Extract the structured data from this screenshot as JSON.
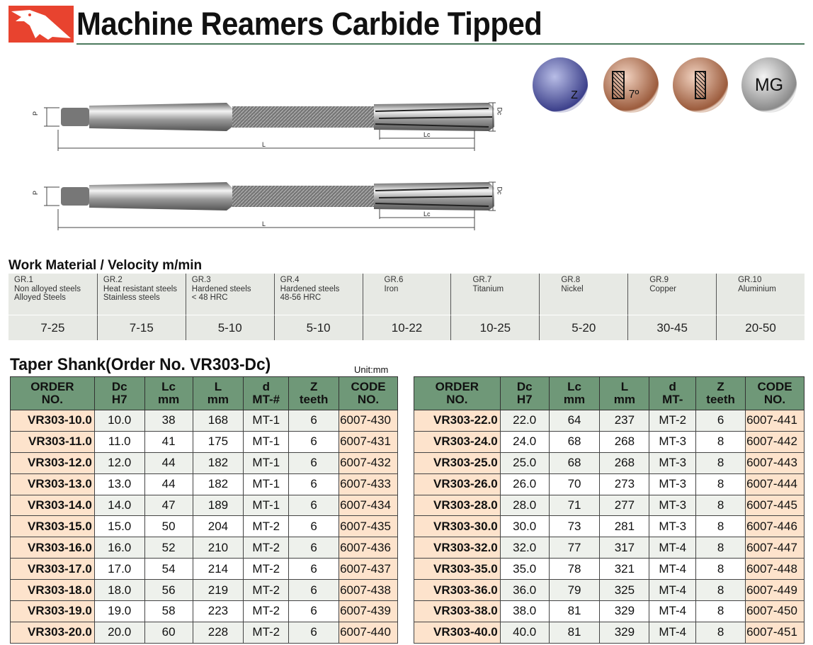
{
  "header": {
    "title": "Machine Reamers Carbide Tipped",
    "brand_color": "#e8432f"
  },
  "badges": [
    {
      "icon": "flute-count-icon",
      "label": "Z"
    },
    {
      "icon": "chamfer-angle-icon",
      "label": "7º"
    },
    {
      "icon": "through-coolant-icon"
    },
    {
      "icon": "mg-grade-icon",
      "label": "MG"
    }
  ],
  "drawing": {
    "labels": {
      "d": "P",
      "dc": "Dc",
      "lc": "Lc",
      "l": "L"
    }
  },
  "work_material": {
    "title": "Work Material / Velocity m/min",
    "groups": [
      {
        "name": "GR.1\nNon alloyed steels\nAlloyed Steels",
        "velocity": "7-25"
      },
      {
        "name": "GR.2\nHeat resistant steels\nStainless steels",
        "velocity": "7-15"
      },
      {
        "name": "GR.3\nHardened steels\n< 48 HRC",
        "velocity": "5-10"
      },
      {
        "name": "GR.4\nHardened steels\n48-56 HRC",
        "velocity": "5-10"
      },
      {
        "name": "GR.6\nIron",
        "velocity": "10-22"
      },
      {
        "name": "GR.7\nTitanium",
        "velocity": "10-25"
      },
      {
        "name": "GR.8\nNickel",
        "velocity": "5-20"
      },
      {
        "name": "GR.9\nCopper",
        "velocity": "30-45"
      },
      {
        "name": "GR.10\nAluminium",
        "velocity": "20-50"
      }
    ]
  },
  "taper_shank": {
    "title": "Taper Shank(Order No. VR303-Dc)",
    "unit": "Unit:mm",
    "colors": {
      "header": "#6f9878",
      "order": "#fde3cc"
    },
    "left": {
      "headers": [
        "ORDER\nNO.",
        "Dc\nH7",
        "Lc\nmm",
        "L\nmm",
        "d\nMT-#",
        "Z\nteeth",
        "CODE\nNO."
      ],
      "rows": [
        [
          "VR303-10.0",
          "10.0",
          "38",
          "168",
          "MT-1",
          "6",
          "6007-430"
        ],
        [
          "VR303-11.0",
          "11.0",
          "41",
          "175",
          "MT-1",
          "6",
          "6007-431"
        ],
        [
          "VR303-12.0",
          "12.0",
          "44",
          "182",
          "MT-1",
          "6",
          "6007-432"
        ],
        [
          "VR303-13.0",
          "13.0",
          "44",
          "182",
          "MT-1",
          "6",
          "6007-433"
        ],
        [
          "VR303-14.0",
          "14.0",
          "47",
          "189",
          "MT-1",
          "6",
          "6007-434"
        ],
        [
          "VR303-15.0",
          "15.0",
          "50",
          "204",
          "MT-2",
          "6",
          "6007-435"
        ],
        [
          "VR303-16.0",
          "16.0",
          "52",
          "210",
          "MT-2",
          "6",
          "6007-436"
        ],
        [
          "VR303-17.0",
          "17.0",
          "54",
          "214",
          "MT-2",
          "6",
          "6007-437"
        ],
        [
          "VR303-18.0",
          "18.0",
          "56",
          "219",
          "MT-2",
          "6",
          "6007-438"
        ],
        [
          "VR303-19.0",
          "19.0",
          "58",
          "223",
          "MT-2",
          "6",
          "6007-439"
        ],
        [
          "VR303-20.0",
          "20.0",
          "60",
          "228",
          "MT-2",
          "6",
          "6007-440"
        ]
      ]
    },
    "right": {
      "headers": [
        "ORDER\nNO.",
        "Dc\nH7",
        "Lc\nmm",
        "L\nmm",
        "d\nMT-",
        "Z\nteeth",
        "CODE\nNO."
      ],
      "rows": [
        [
          "VR303-22.0",
          "22.0",
          "64",
          "237",
          "MT-2",
          "6",
          "6007-441"
        ],
        [
          "VR303-24.0",
          "24.0",
          "68",
          "268",
          "MT-3",
          "8",
          "6007-442"
        ],
        [
          "VR303-25.0",
          "25.0",
          "68",
          "268",
          "MT-3",
          "8",
          "6007-443"
        ],
        [
          "VR303-26.0",
          "26.0",
          "70",
          "273",
          "MT-3",
          "8",
          "6007-444"
        ],
        [
          "VR303-28.0",
          "28.0",
          "71",
          "277",
          "MT-3",
          "8",
          "6007-445"
        ],
        [
          "VR303-30.0",
          "30.0",
          "73",
          "281",
          "MT-3",
          "8",
          "6007-446"
        ],
        [
          "VR303-32.0",
          "32.0",
          "77",
          "317",
          "MT-4",
          "8",
          "6007-447"
        ],
        [
          "VR303-35.0",
          "35.0",
          "78",
          "321",
          "MT-4",
          "8",
          "6007-448"
        ],
        [
          "VR303-36.0",
          "36.0",
          "79",
          "325",
          "MT-4",
          "8",
          "6007-449"
        ],
        [
          "VR303-38.0",
          "38.0",
          "81",
          "329",
          "MT-4",
          "8",
          "6007-450"
        ],
        [
          "VR303-40.0",
          "40.0",
          "81",
          "329",
          "MT-4",
          "8",
          "6007-451"
        ]
      ]
    }
  }
}
